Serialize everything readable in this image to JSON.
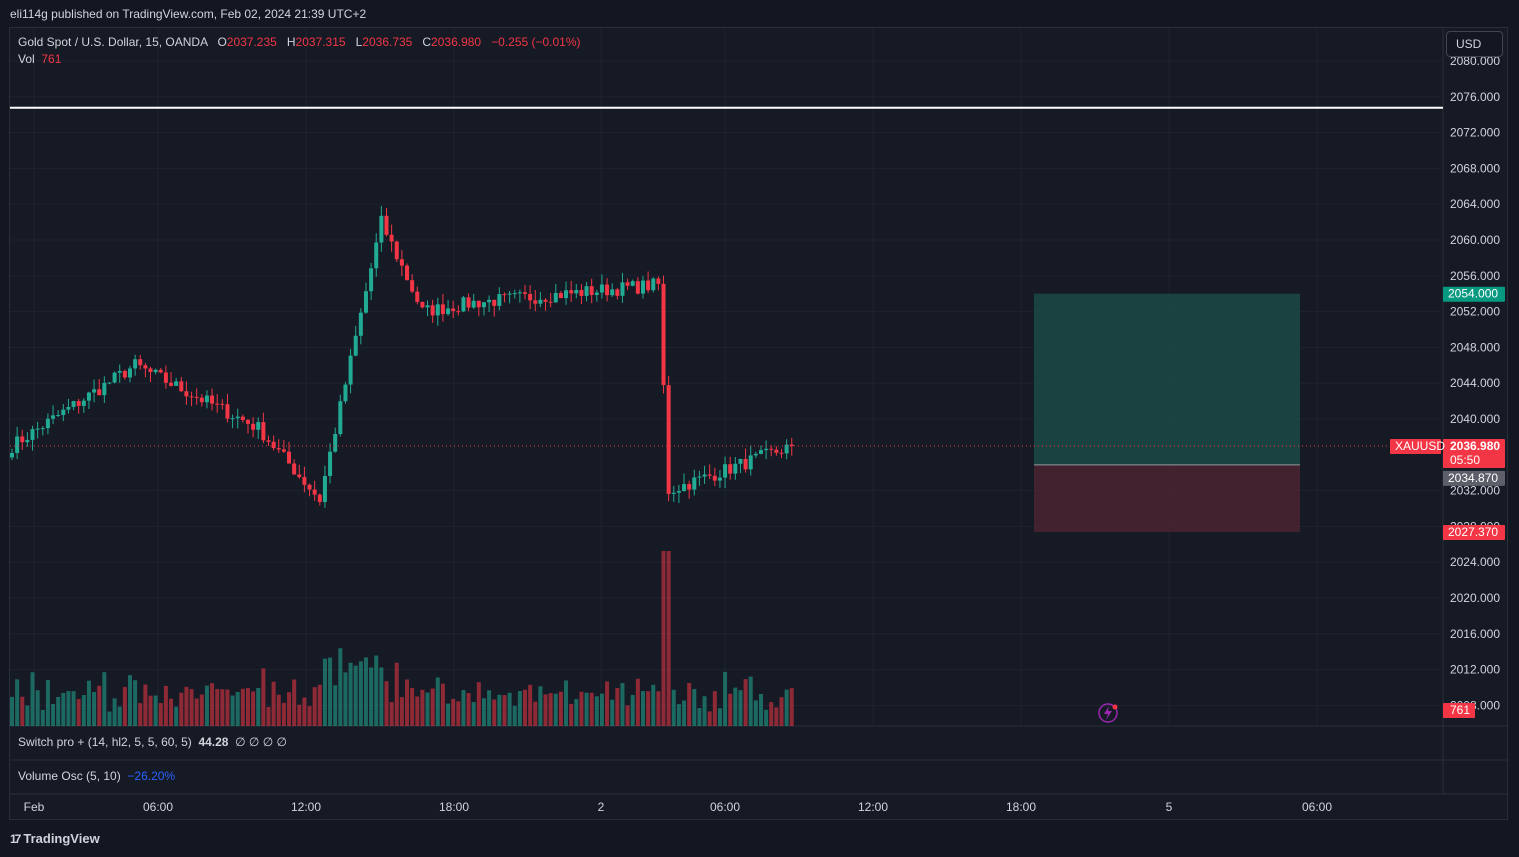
{
  "header": {
    "published": "eli114g published on TradingView.com, Feb 02, 2024 21:39 UTC+2"
  },
  "legend": {
    "symbol": "Gold Spot / U.S. Dollar, 15, OANDA",
    "o_label": "O",
    "o_value": "2037.235",
    "h_label": "H",
    "h_value": "2037.315",
    "l_label": "L",
    "l_value": "2036.735",
    "c_label": "C",
    "c_value": "2036.980",
    "change": "−0.255 (−0.01%)",
    "vol_label": "Vol",
    "vol_value": "761"
  },
  "currency_button": "USD",
  "indicators": {
    "switch_pro": {
      "name": "Switch pro + (14, hl2, 5, 5, 60, 5)",
      "value": "44.28",
      "empties": "∅ ∅ ∅ ∅"
    },
    "volume_osc": {
      "name": "Volume Osc (5, 10)",
      "value": "−26.20%"
    }
  },
  "price_scale": {
    "ticks": [
      "2080.000",
      "2076.000",
      "2072.000",
      "2068.000",
      "2064.000",
      "2060.000",
      "2056.000",
      "2052.000",
      "2048.000",
      "2044.000",
      "2040.000",
      "2032.000",
      "2028.000",
      "2024.000",
      "2020.000",
      "2016.000",
      "2012.000",
      "2008.000"
    ],
    "symbol_tag": "XAUUSD",
    "last_price": "2036.980",
    "countdown": "05:50",
    "entry_price": "2034.870",
    "target_price": "2054.000",
    "stop_price": "2027.370",
    "volume_tag": "761"
  },
  "time_scale": {
    "labels": [
      "Feb",
      "06:00",
      "12:00",
      "18:00",
      "2",
      "06:00",
      "12:00",
      "18:00",
      "5",
      "06:00"
    ]
  },
  "colors": {
    "up": "#22ab94",
    "down": "#f23645",
    "background": "#161a25",
    "grid": "#1f2331",
    "target_zone": "#1a4a45",
    "stop_zone": "#4a2431",
    "horizontal_line": "#ffffff"
  },
  "chart_data": {
    "type": "candlestick",
    "symbol": "XAUUSD",
    "timeframe": "15",
    "ylim": [
      2006,
      2082
    ],
    "horizontal_line": 2075,
    "position": {
      "entry": 2034.87,
      "target": 2054.0,
      "stop": 2027.37
    },
    "key_closes": [
      {
        "time": "Feb 1 00:00",
        "close": 2037
      },
      {
        "time": "Feb 1 06:00",
        "close": 2046
      },
      {
        "time": "Feb 1 12:00",
        "close": 2039
      },
      {
        "time": "Feb 1 15:00",
        "close": 2031
      },
      {
        "time": "Feb 1 18:00",
        "close": 2062
      },
      {
        "time": "Feb 1 20:00",
        "close": 2052
      },
      {
        "time": "Feb 2 06:00",
        "close": 2053
      },
      {
        "time": "Feb 2 15:00",
        "close": 2055
      },
      {
        "time": "Feb 2 15:30",
        "close": 2032
      },
      {
        "time": "Feb 2 21:30",
        "close": 2036.98
      }
    ]
  }
}
